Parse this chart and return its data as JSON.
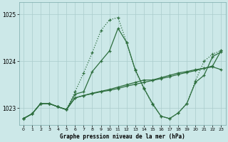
{
  "background_color": "#cce8e8",
  "grid_color": "#aacccc",
  "line_color": "#2d6e3e",
  "title": "Graphe pression niveau de la mer (hPa)",
  "xlim": [
    -0.5,
    23.5
  ],
  "ylim": [
    1022.65,
    1025.25
  ],
  "yticks": [
    1023,
    1024,
    1025
  ],
  "xticks": [
    0,
    1,
    2,
    3,
    4,
    5,
    6,
    7,
    8,
    9,
    10,
    11,
    12,
    13,
    14,
    15,
    16,
    17,
    18,
    19,
    20,
    21,
    22,
    23
  ],
  "series": [
    {
      "x": [
        0,
        1,
        2,
        3,
        4,
        5,
        6,
        7,
        8,
        9,
        10,
        11,
        12,
        13,
        14,
        15,
        16,
        17,
        18,
        19,
        20,
        21,
        22,
        23
      ],
      "y": [
        1022.78,
        1022.88,
        1023.1,
        1023.1,
        1023.03,
        1022.97,
        1023.35,
        1023.75,
        1024.18,
        1024.65,
        1024.88,
        1024.93,
        1024.4,
        1023.8,
        1023.42,
        1023.08,
        1022.83,
        1022.78,
        1022.9,
        1023.1,
        1023.58,
        1024.0,
        1024.15,
        1024.23
      ],
      "linestyle": "dotted",
      "marker": "+"
    },
    {
      "x": [
        0,
        1,
        2,
        3,
        4,
        5,
        6,
        7,
        8,
        9,
        10,
        11,
        12,
        13,
        14,
        15,
        16,
        17,
        18,
        19,
        20,
        21,
        22,
        23
      ],
      "y": [
        1022.78,
        1022.88,
        1023.1,
        1023.1,
        1023.03,
        1022.97,
        1023.3,
        1023.35,
        1023.78,
        1024.0,
        1024.22,
        1024.7,
        1024.4,
        1023.82,
        1023.43,
        1023.1,
        1022.83,
        1022.78,
        1022.9,
        1023.1,
        1023.55,
        1023.7,
        1024.1,
        1024.2
      ],
      "linestyle": "solid",
      "marker": "+"
    },
    {
      "x": [
        0,
        1,
        2,
        3,
        4,
        5,
        6,
        7,
        8,
        9,
        10,
        11,
        12,
        13,
        14,
        15,
        16,
        17,
        18,
        19,
        20,
        21,
        22,
        23
      ],
      "y": [
        1022.78,
        1022.88,
        1023.1,
        1023.1,
        1023.03,
        1022.97,
        1023.22,
        1023.27,
        1023.32,
        1023.36,
        1023.4,
        1023.45,
        1023.5,
        1023.55,
        1023.6,
        1023.6,
        1023.65,
        1023.7,
        1023.75,
        1023.78,
        1023.82,
        1023.85,
        1023.88,
        1023.82
      ],
      "linestyle": "solid",
      "marker": "+"
    },
    {
      "x": [
        0,
        1,
        2,
        3,
        4,
        5,
        6,
        7,
        8,
        9,
        10,
        11,
        12,
        13,
        14,
        15,
        16,
        17,
        18,
        19,
        20,
        21,
        22,
        23
      ],
      "y": [
        1022.78,
        1022.88,
        1023.1,
        1023.1,
        1023.03,
        1022.97,
        1023.22,
        1023.27,
        1023.31,
        1023.35,
        1023.38,
        1023.42,
        1023.47,
        1023.51,
        1023.55,
        1023.59,
        1023.63,
        1023.67,
        1023.72,
        1023.76,
        1023.8,
        1023.85,
        1023.9,
        1024.23
      ],
      "linestyle": "solid",
      "marker": "+"
    }
  ]
}
